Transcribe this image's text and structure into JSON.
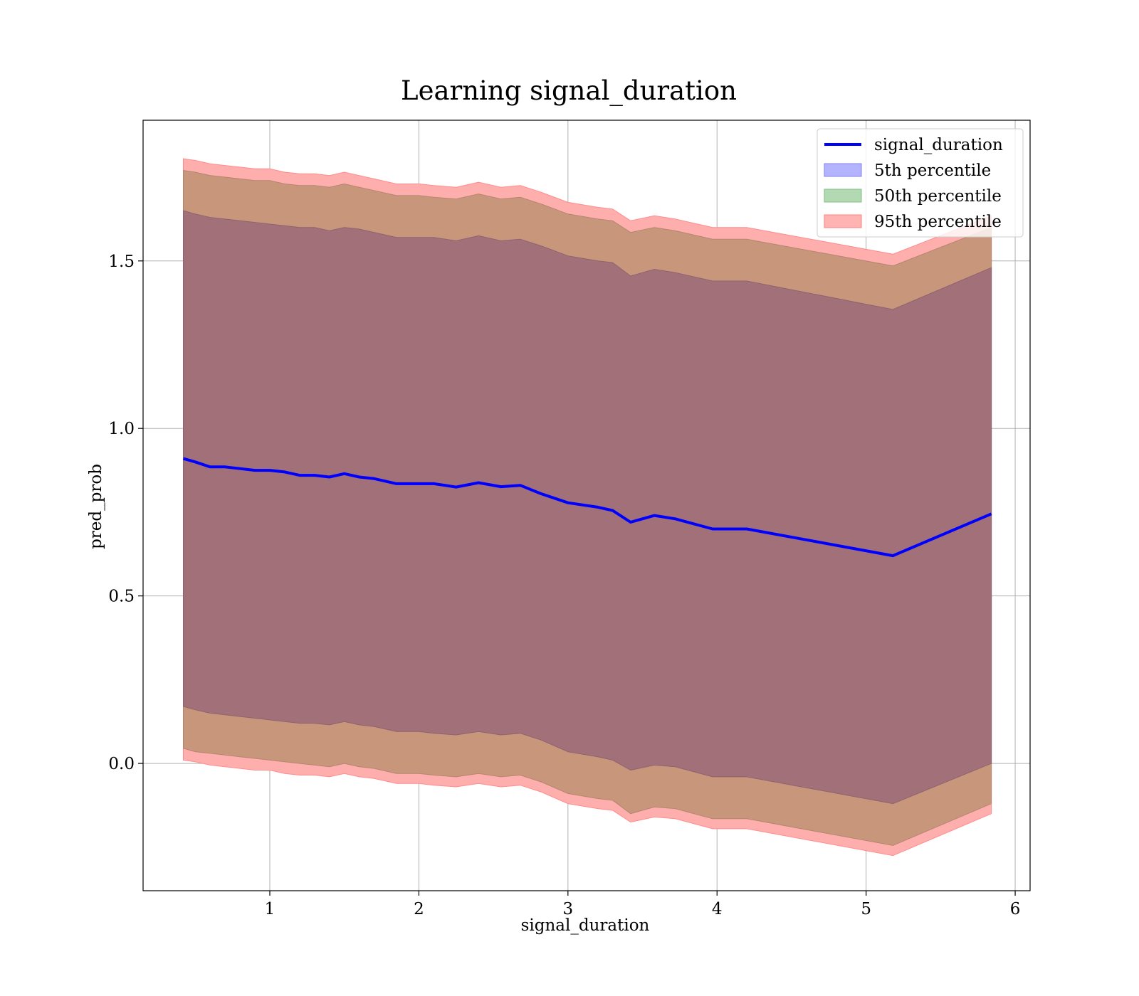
{
  "chart_data": {
    "type": "area",
    "title": "Learning signal_duration",
    "xlabel": "signal_duration",
    "ylabel": "pred_prob",
    "xlim": [
      0.15,
      6.1
    ],
    "ylim": [
      -0.38,
      1.92
    ],
    "xticks": [
      "1",
      "2",
      "3",
      "4",
      "5",
      "6"
    ],
    "yticks": [
      "0.0",
      "0.5",
      "1.0",
      "1.5"
    ],
    "grid": true,
    "legend_position": "top-right",
    "legend": [
      "signal_duration",
      "5th percentile",
      "50th percentile",
      "95th percentile"
    ],
    "colors": {
      "line": "#0000ff",
      "band_5th": "#0000ff",
      "band_50th": "#008000",
      "band_95th": "#ff0000",
      "band_combined": "#a27079"
    },
    "x": [
      0.42,
      0.5,
      0.6,
      0.7,
      0.8,
      0.9,
      1.0,
      1.1,
      1.2,
      1.3,
      1.4,
      1.5,
      1.6,
      1.7,
      1.85,
      2.0,
      2.1,
      2.25,
      2.4,
      2.55,
      2.68,
      2.82,
      3.0,
      3.2,
      3.3,
      3.42,
      3.58,
      3.72,
      3.97,
      4.2,
      5.18,
      5.84
    ],
    "series": [
      {
        "name": "signal_duration",
        "values": [
          0.91,
          0.9,
          0.885,
          0.885,
          0.88,
          0.875,
          0.875,
          0.87,
          0.86,
          0.86,
          0.855,
          0.865,
          0.855,
          0.85,
          0.835,
          0.835,
          0.835,
          0.825,
          0.838,
          0.826,
          0.83,
          0.805,
          0.778,
          0.765,
          0.755,
          0.72,
          0.74,
          0.73,
          0.7,
          0.7,
          0.62,
          0.745
        ]
      },
      {
        "name": "5th percentile",
        "lower": [
          0.17,
          0.16,
          0.15,
          0.145,
          0.14,
          0.135,
          0.13,
          0.125,
          0.12,
          0.12,
          0.115,
          0.125,
          0.115,
          0.11,
          0.095,
          0.095,
          0.09,
          0.085,
          0.095,
          0.085,
          0.09,
          0.07,
          0.035,
          0.02,
          0.01,
          -0.02,
          -0.005,
          -0.01,
          -0.04,
          -0.04,
          -0.12,
          0.0
        ],
        "upper": [
          1.65,
          1.64,
          1.63,
          1.625,
          1.62,
          1.615,
          1.61,
          1.605,
          1.6,
          1.6,
          1.59,
          1.6,
          1.595,
          1.585,
          1.57,
          1.57,
          1.57,
          1.56,
          1.575,
          1.56,
          1.565,
          1.545,
          1.515,
          1.5,
          1.495,
          1.455,
          1.475,
          1.465,
          1.44,
          1.44,
          1.355,
          1.48
        ]
      },
      {
        "name": "50th percentile",
        "lower": [
          0.045,
          0.035,
          0.03,
          0.025,
          0.02,
          0.015,
          0.01,
          0.005,
          0.0,
          -0.005,
          -0.01,
          0.0,
          -0.01,
          -0.015,
          -0.03,
          -0.03,
          -0.035,
          -0.04,
          -0.03,
          -0.04,
          -0.035,
          -0.055,
          -0.09,
          -0.105,
          -0.11,
          -0.15,
          -0.13,
          -0.135,
          -0.165,
          -0.165,
          -0.245,
          -0.12
        ],
        "upper": [
          1.77,
          1.765,
          1.755,
          1.75,
          1.745,
          1.74,
          1.74,
          1.73,
          1.725,
          1.725,
          1.72,
          1.73,
          1.72,
          1.71,
          1.695,
          1.695,
          1.69,
          1.685,
          1.7,
          1.685,
          1.69,
          1.67,
          1.64,
          1.625,
          1.62,
          1.585,
          1.6,
          1.59,
          1.565,
          1.565,
          1.485,
          1.6
        ]
      },
      {
        "name": "95th percentile",
        "lower": [
          0.01,
          0.005,
          -0.005,
          -0.01,
          -0.015,
          -0.02,
          -0.02,
          -0.03,
          -0.035,
          -0.035,
          -0.04,
          -0.03,
          -0.04,
          -0.045,
          -0.06,
          -0.06,
          -0.065,
          -0.07,
          -0.06,
          -0.07,
          -0.065,
          -0.085,
          -0.12,
          -0.135,
          -0.14,
          -0.175,
          -0.16,
          -0.165,
          -0.195,
          -0.195,
          -0.275,
          -0.15
        ],
        "upper": [
          1.805,
          1.8,
          1.79,
          1.785,
          1.78,
          1.775,
          1.775,
          1.765,
          1.76,
          1.76,
          1.755,
          1.765,
          1.755,
          1.745,
          1.73,
          1.73,
          1.725,
          1.72,
          1.735,
          1.72,
          1.725,
          1.705,
          1.675,
          1.66,
          1.655,
          1.62,
          1.635,
          1.625,
          1.6,
          1.6,
          1.52,
          1.635
        ]
      }
    ]
  }
}
